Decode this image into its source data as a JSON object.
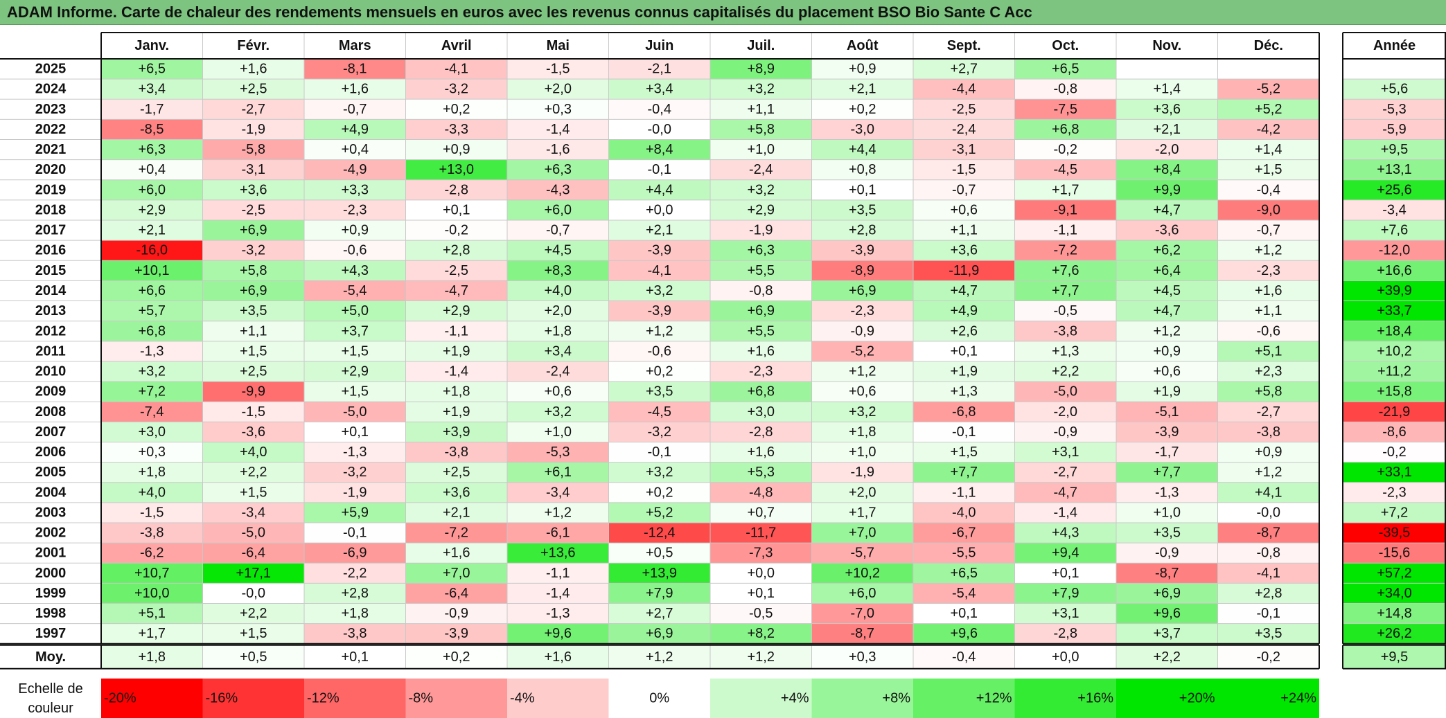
{
  "title": "ADAM Informe. Carte de chaleur des rendements mensuels en euros avec les revenus connus capitalisés du placement BSO Bio Sante C Acc",
  "chart_data": {
    "type": "heatmap",
    "title": "ADAM Informe. Carte de chaleur des rendements mensuels en euros avec les revenus connus capitalisés du placement BSO Bio Sante C Acc",
    "months": [
      "Janv.",
      "Févr.",
      "Mars",
      "Avril",
      "Mai",
      "Juin",
      "Juil.",
      "Août",
      "Sept.",
      "Oct.",
      "Nov.",
      "Déc."
    ],
    "annual_label": "Année",
    "average_label": "Moy.",
    "rows": [
      {
        "year": "2025",
        "values": [
          "+6,5",
          "+1,6",
          "-8,1",
          "-4,1",
          "-1,5",
          "-2,1",
          "+8,9",
          "+0,9",
          "+2,7",
          "+6,5",
          "",
          ""
        ],
        "annual": ""
      },
      {
        "year": "2024",
        "values": [
          "+3,4",
          "+2,5",
          "+1,6",
          "-3,2",
          "+2,0",
          "+3,4",
          "+3,2",
          "+2,1",
          "-4,4",
          "-0,8",
          "+1,4",
          "-5,2"
        ],
        "annual": "+5,6"
      },
      {
        "year": "2023",
        "values": [
          "-1,7",
          "-2,7",
          "-0,7",
          "+0,2",
          "+0,3",
          "-0,4",
          "+1,1",
          "+0,2",
          "-2,5",
          "-7,5",
          "+3,6",
          "+5,2"
        ],
        "annual": "-5,3"
      },
      {
        "year": "2022",
        "values": [
          "-8,5",
          "-1,9",
          "+4,9",
          "-3,3",
          "-1,4",
          "-0,0",
          "+5,8",
          "-3,0",
          "-2,4",
          "+6,8",
          "+2,1",
          "-4,2"
        ],
        "annual": "-5,9"
      },
      {
        "year": "2021",
        "values": [
          "+6,3",
          "-5,8",
          "+0,4",
          "+0,9",
          "-1,6",
          "+8,4",
          "+1,0",
          "+4,4",
          "-3,1",
          "-0,2",
          "-2,0",
          "+1,4"
        ],
        "annual": "+9,5"
      },
      {
        "year": "2020",
        "values": [
          "+0,4",
          "-3,1",
          "-4,9",
          "+13,0",
          "+6,3",
          "-0,1",
          "-2,4",
          "+0,8",
          "-1,5",
          "-4,5",
          "+8,4",
          "+1,5"
        ],
        "annual": "+13,1"
      },
      {
        "year": "2019",
        "values": [
          "+6,0",
          "+3,6",
          "+3,3",
          "-2,8",
          "-4,3",
          "+4,4",
          "+3,2",
          "+0,1",
          "-0,7",
          "+1,7",
          "+9,9",
          "-0,4"
        ],
        "annual": "+25,6"
      },
      {
        "year": "2018",
        "values": [
          "+2,9",
          "-2,5",
          "-2,3",
          "+0,1",
          "+6,0",
          "+0,0",
          "+2,9",
          "+3,5",
          "+0,6",
          "-9,1",
          "+4,7",
          "-9,0"
        ],
        "annual": "-3,4"
      },
      {
        "year": "2017",
        "values": [
          "+2,1",
          "+6,9",
          "+0,9",
          "-0,2",
          "-0,7",
          "+2,1",
          "-1,9",
          "+2,8",
          "+1,1",
          "-1,1",
          "-3,6",
          "-0,7"
        ],
        "annual": "+7,6"
      },
      {
        "year": "2016",
        "values": [
          "-16,0",
          "-3,2",
          "-0,6",
          "+2,8",
          "+4,5",
          "-3,9",
          "+6,3",
          "-3,9",
          "+3,6",
          "-7,2",
          "+6,2",
          "+1,2"
        ],
        "annual": "-12,0"
      },
      {
        "year": "2015",
        "values": [
          "+10,1",
          "+5,8",
          "+4,3",
          "-2,5",
          "+8,3",
          "-4,1",
          "+5,5",
          "-8,9",
          "-11,9",
          "+7,6",
          "+6,4",
          "-2,3"
        ],
        "annual": "+16,6"
      },
      {
        "year": "2014",
        "values": [
          "+6,6",
          "+6,9",
          "-5,4",
          "-4,7",
          "+4,0",
          "+3,2",
          "-0,8",
          "+6,9",
          "+4,7",
          "+7,7",
          "+4,5",
          "+1,6"
        ],
        "annual": "+39,9"
      },
      {
        "year": "2013",
        "values": [
          "+5,7",
          "+3,5",
          "+5,0",
          "+2,9",
          "+2,0",
          "-3,9",
          "+6,9",
          "-2,3",
          "+4,9",
          "-0,5",
          "+4,7",
          "+1,1"
        ],
        "annual": "+33,7"
      },
      {
        "year": "2012",
        "values": [
          "+6,8",
          "+1,1",
          "+3,7",
          "-1,1",
          "+1,8",
          "+1,2",
          "+5,5",
          "-0,9",
          "+2,6",
          "-3,8",
          "+1,2",
          "-0,6"
        ],
        "annual": "+18,4"
      },
      {
        "year": "2011",
        "values": [
          "-1,3",
          "+1,5",
          "+1,5",
          "+1,9",
          "+3,4",
          "-0,6",
          "+1,6",
          "-5,2",
          "+0,1",
          "+1,3",
          "+0,9",
          "+5,1"
        ],
        "annual": "+10,2"
      },
      {
        "year": "2010",
        "values": [
          "+3,2",
          "+2,5",
          "+2,9",
          "-1,4",
          "-2,4",
          "+0,2",
          "-2,3",
          "+1,2",
          "+1,9",
          "+2,2",
          "+0,6",
          "+2,3"
        ],
        "annual": "+11,2"
      },
      {
        "year": "2009",
        "values": [
          "+7,2",
          "-9,9",
          "+1,5",
          "+1,8",
          "+0,6",
          "+3,5",
          "+6,8",
          "+0,6",
          "+1,3",
          "-5,0",
          "+1,9",
          "+5,8"
        ],
        "annual": "+15,8"
      },
      {
        "year": "2008",
        "values": [
          "-7,4",
          "-1,5",
          "-5,0",
          "+1,9",
          "+3,2",
          "-4,5",
          "+3,0",
          "+3,2",
          "-6,8",
          "-2,0",
          "-5,1",
          "-2,7"
        ],
        "annual": "-21,9"
      },
      {
        "year": "2007",
        "values": [
          "+3,0",
          "-3,6",
          "+0,1",
          "+3,9",
          "+1,0",
          "-3,2",
          "-2,8",
          "+1,8",
          "-0,1",
          "-0,9",
          "-3,9",
          "-3,8"
        ],
        "annual": "-8,6"
      },
      {
        "year": "2006",
        "values": [
          "+0,3",
          "+4,0",
          "-1,3",
          "-3,8",
          "-5,3",
          "-0,1",
          "+1,6",
          "+1,0",
          "+1,5",
          "+3,1",
          "-1,7",
          "+0,9"
        ],
        "annual": "-0,2"
      },
      {
        "year": "2005",
        "values": [
          "+1,8",
          "+2,2",
          "-3,2",
          "+2,5",
          "+6,1",
          "+3,2",
          "+5,3",
          "-1,9",
          "+7,7",
          "-2,7",
          "+7,7",
          "+1,2"
        ],
        "annual": "+33,1"
      },
      {
        "year": "2004",
        "values": [
          "+4,0",
          "+1,5",
          "-1,9",
          "+3,6",
          "-3,4",
          "+0,2",
          "-4,8",
          "+2,0",
          "-1,1",
          "-4,7",
          "-1,3",
          "+4,1"
        ],
        "annual": "-2,3"
      },
      {
        "year": "2003",
        "values": [
          "-1,5",
          "-3,4",
          "+5,9",
          "+2,1",
          "+1,2",
          "+5,2",
          "+0,7",
          "+1,7",
          "-4,0",
          "-1,4",
          "+1,0",
          "-0,0"
        ],
        "annual": "+7,2"
      },
      {
        "year": "2002",
        "values": [
          "-3,8",
          "-5,0",
          "-0,1",
          "-7,2",
          "-6,1",
          "-12,4",
          "-11,7",
          "+7,0",
          "-6,7",
          "+4,3",
          "+3,5",
          "-8,7"
        ],
        "annual": "-39,5"
      },
      {
        "year": "2001",
        "values": [
          "-6,2",
          "-6,4",
          "-6,9",
          "+1,6",
          "+13,6",
          "+0,5",
          "-7,3",
          "-5,7",
          "-5,5",
          "+9,4",
          "-0,9",
          "-0,8"
        ],
        "annual": "-15,6"
      },
      {
        "year": "2000",
        "values": [
          "+10,7",
          "+17,1",
          "-2,2",
          "+7,0",
          "-1,1",
          "+13,9",
          "+0,0",
          "+10,2",
          "+6,5",
          "+0,1",
          "-8,7",
          "-4,1"
        ],
        "annual": "+57,2"
      },
      {
        "year": "1999",
        "values": [
          "+10,0",
          "-0,0",
          "+2,8",
          "-6,4",
          "-1,4",
          "+7,9",
          "+0,1",
          "+6,0",
          "-5,4",
          "+7,9",
          "+6,9",
          "+2,8"
        ],
        "annual": "+34,0"
      },
      {
        "year": "1998",
        "values": [
          "+5,1",
          "+2,2",
          "+1,8",
          "-0,9",
          "-1,3",
          "+2,7",
          "-0,5",
          "-7,0",
          "+0,1",
          "+3,1",
          "+9,6",
          "-0,1"
        ],
        "annual": "+14,8"
      },
      {
        "year": "1997",
        "values": [
          "+1,7",
          "+1,5",
          "-3,8",
          "-3,9",
          "+9,6",
          "+6,9",
          "+8,2",
          "-8,7",
          "+9,6",
          "-2,8",
          "+3,7",
          "+3,5"
        ],
        "annual": "+26,2"
      }
    ],
    "averages": [
      "+1,8",
      "+0,5",
      "+0,1",
      "+0,2",
      "+1,6",
      "+1,2",
      "+1,2",
      "+0,3",
      "-0,4",
      "+0,0",
      "+2,2",
      "-0,2"
    ],
    "average_annual": "+9,5",
    "color_scale": {
      "label": "Echelle de couleur",
      "steps": [
        "-20%",
        "-16%",
        "-12%",
        "-8%",
        "-4%",
        "0%",
        "+4%",
        "+8%",
        "+12%",
        "+16%",
        "+20%",
        "+24%"
      ],
      "negative_color": "#ff0000",
      "neutral_color": "#ffffff",
      "positive_color": "#00e600"
    }
  }
}
